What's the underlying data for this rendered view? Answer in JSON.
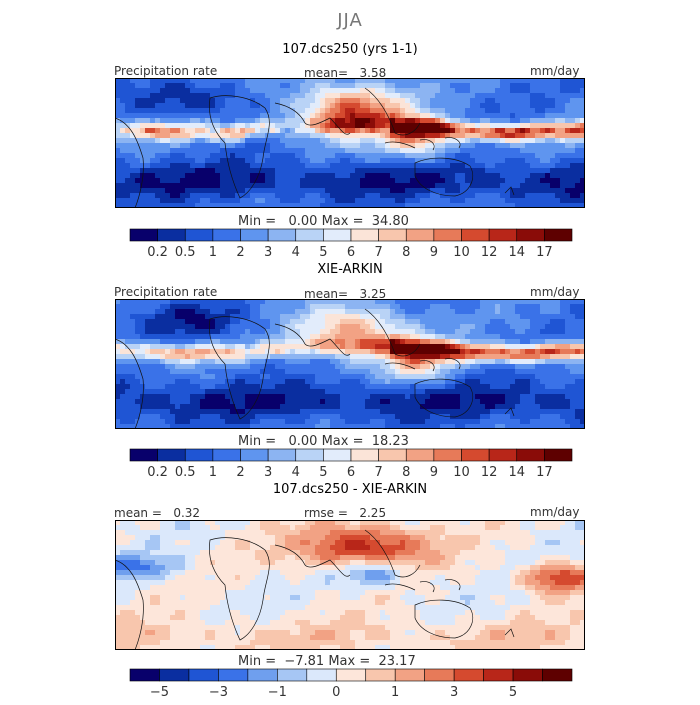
{
  "season": "JJA",
  "panels": [
    {
      "title": "107.dcs250 (yrs 1-1)",
      "left_label": "Precipitation rate",
      "center_label": "mean=   3.58",
      "right_label": "mm/day",
      "minmax": "Min =   0.00 Max =  34.80",
      "tick_labels": [
        "0.2",
        "0.5",
        "1",
        "2",
        "3",
        "4",
        "5",
        "6",
        "7",
        "8",
        "9",
        "10",
        "12",
        "14",
        "17"
      ]
    },
    {
      "title": "XIE-ARKIN",
      "left_label": "Precipitation rate",
      "center_label": "mean=   3.25",
      "right_label": "mm/day",
      "minmax": "Min =   0.00 Max =  18.23",
      "tick_labels": [
        "0.2",
        "0.5",
        "1",
        "2",
        "3",
        "4",
        "5",
        "6",
        "7",
        "8",
        "9",
        "10",
        "12",
        "14",
        "17"
      ]
    },
    {
      "title": "107.dcs250 - XIE-ARKIN",
      "left_label": "mean =   0.32",
      "center_label": "rmse =   2.25",
      "right_label": "mm/day",
      "minmax": "Min =  −7.81 Max =  23.17",
      "tick_labels": [
        "−5",
        "",
        "−3",
        "",
        "−1",
        "",
        "0",
        "",
        "1",
        "",
        "3",
        "",
        "5",
        ""
      ]
    }
  ],
  "chart_data": [
    {
      "type": "heatmap",
      "title": "107.dcs250 (yrs 1-1)",
      "variable": "Precipitation rate",
      "units": "mm/day",
      "mean": 3.58,
      "min": 0.0,
      "max": 34.8,
      "colorbar_levels": [
        0.2,
        0.5,
        1,
        2,
        3,
        4,
        5,
        6,
        7,
        8,
        9,
        10,
        12,
        14,
        17
      ],
      "colorbar_colors": [
        "#08006b",
        "#0a2ea0",
        "#1f55d4",
        "#3a72e8",
        "#5f95ef",
        "#8cb4f2",
        "#b9d3f6",
        "#e2ecfb",
        "#fbe4d8",
        "#f8c6ad",
        "#f2a284",
        "#e77a59",
        "#d54a2f",
        "#b82619",
        "#8a0c08",
        "#5e0000"
      ]
    },
    {
      "type": "heatmap",
      "title": "XIE-ARKIN",
      "variable": "Precipitation rate",
      "units": "mm/day",
      "mean": 3.25,
      "min": 0.0,
      "max": 18.23,
      "colorbar_levels": [
        0.2,
        0.5,
        1,
        2,
        3,
        4,
        5,
        6,
        7,
        8,
        9,
        10,
        12,
        14,
        17
      ],
      "colorbar_colors": [
        "#08006b",
        "#0a2ea0",
        "#1f55d4",
        "#3a72e8",
        "#5f95ef",
        "#8cb4f2",
        "#b9d3f6",
        "#e2ecfb",
        "#fbe4d8",
        "#f8c6ad",
        "#f2a284",
        "#e77a59",
        "#d54a2f",
        "#b82619",
        "#8a0c08",
        "#5e0000"
      ]
    },
    {
      "type": "heatmap",
      "title": "107.dcs250 - XIE-ARKIN",
      "units": "mm/day",
      "mean": 0.32,
      "rmse": 2.25,
      "min": -7.81,
      "max": 23.17,
      "colorbar_levels": [
        -5,
        -4,
        -3,
        -2,
        -1,
        -0.5,
        0,
        0.5,
        1,
        2,
        3,
        4,
        5,
        6
      ],
      "colorbar_colors": [
        "#08006b",
        "#0a2ea0",
        "#1f55d4",
        "#3a72e8",
        "#6f9fee",
        "#a6c6f4",
        "#dbe8fb",
        "#fde6da",
        "#f8c6ad",
        "#f2a284",
        "#e77a59",
        "#d54a2f",
        "#b82619",
        "#8a0c08",
        "#5e0000"
      ]
    }
  ]
}
